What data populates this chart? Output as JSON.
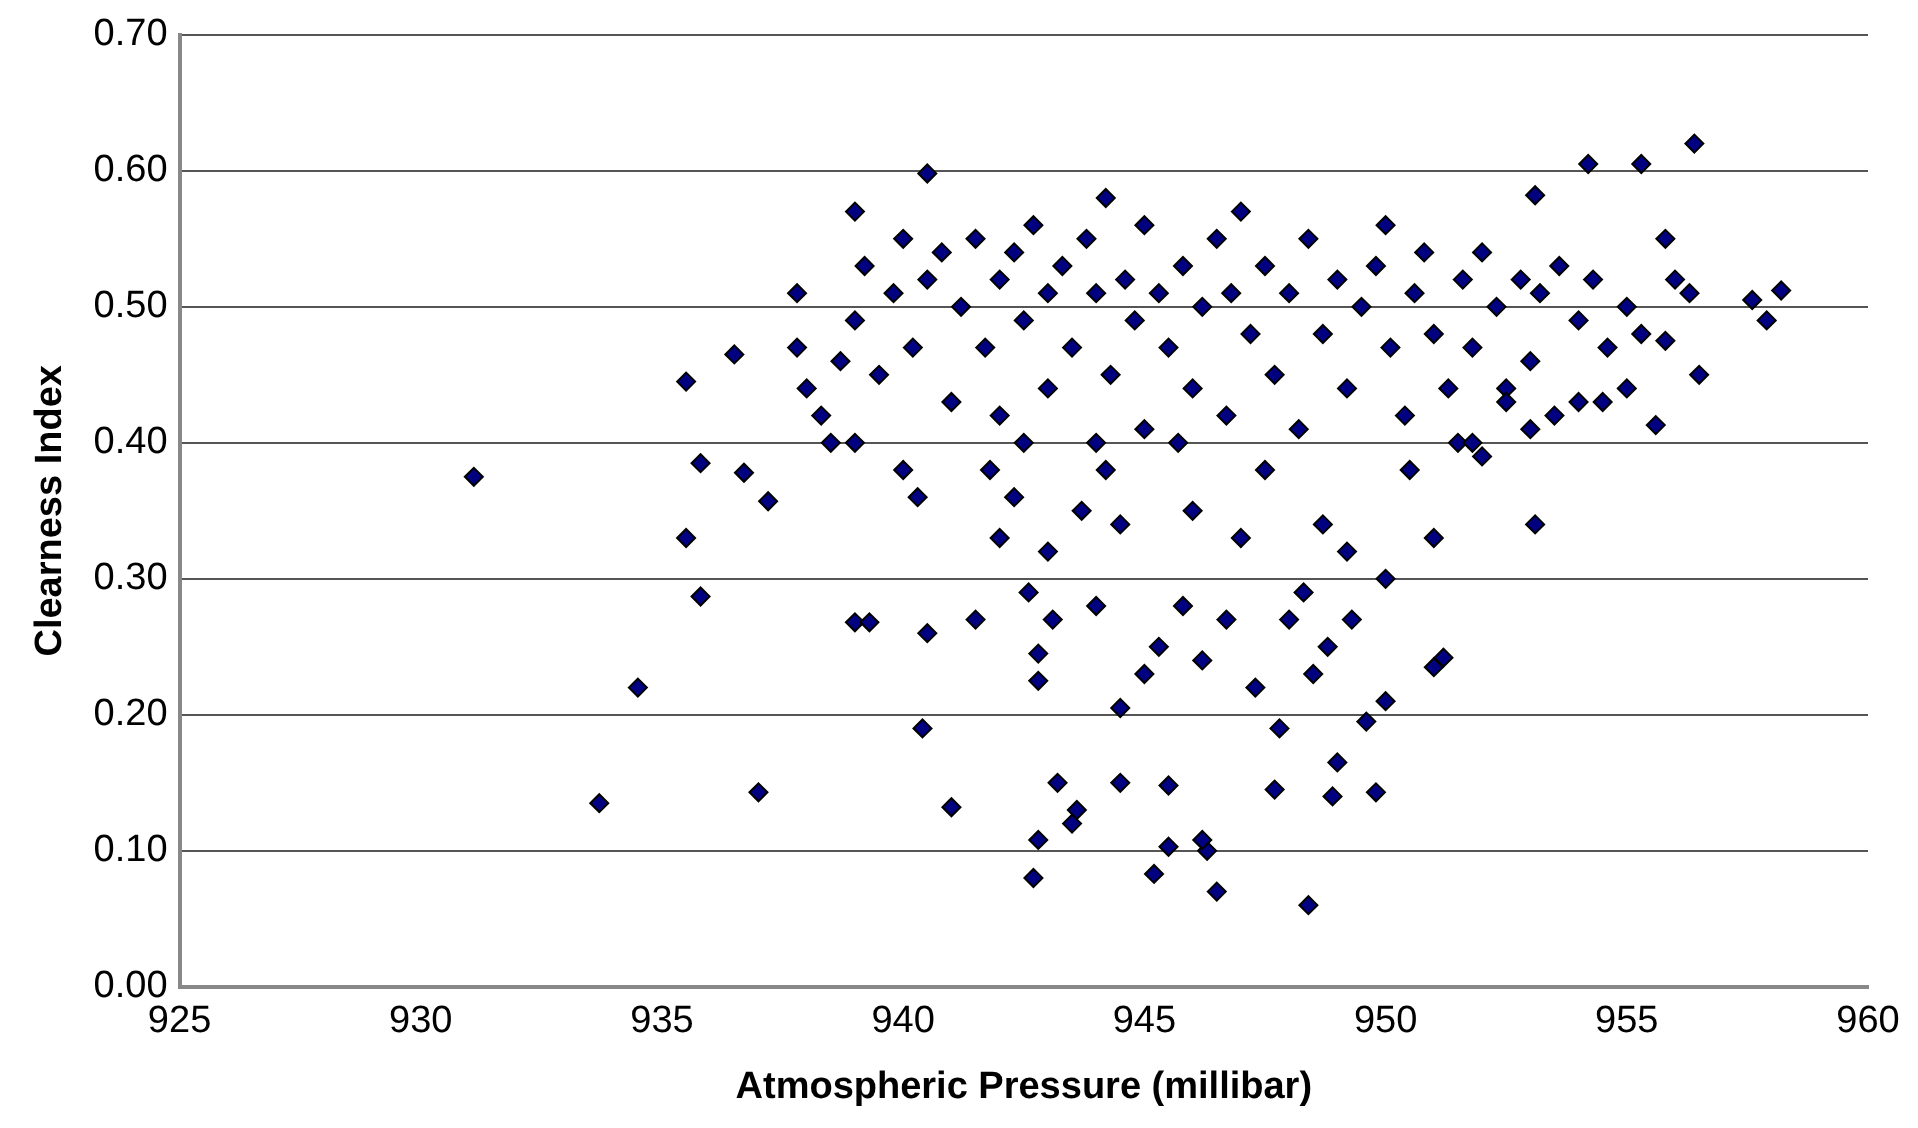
{
  "chart_data": {
    "type": "scatter",
    "xlabel": "Atmospheric Pressure (millibar)",
    "ylabel": "Clearness Index",
    "x": [
      931.1,
      933.7,
      934.5,
      935.5,
      935.5,
      935.8,
      935.8,
      936.5,
      936.7,
      937.0,
      937.2,
      940.4,
      940.5,
      941.0,
      942.7,
      942.8,
      943.2,
      943.5,
      943.6,
      944.5,
      945.2,
      945.5,
      945.5,
      946.3,
      946.5,
      946.2,
      947.7,
      948.4,
      948.9,
      949.8,
      948.5,
      949.0,
      949.6,
      950.0,
      951.0,
      951.2,
      953.1,
      955.6,
      956.5,
      957.6,
      957.9,
      958.2,
      956.4,
      955.3,
      954.2,
      953.1,
      940.5,
      939.0,
      939.3,
      941.5,
      942.0,
      942.6,
      943.0,
      943.1,
      942.8,
      942.8,
      944.0,
      944.5,
      945.0,
      945.3,
      945.8,
      946.2,
      946.7,
      947.3,
      947.8,
      948.0,
      948.3,
      948.8,
      949.3,
      950.0,
      946.0,
      947.0,
      947.5,
      948.7,
      949.2,
      950.5,
      951.0,
      941.8,
      942.3,
      944.5,
      944.2,
      945.7,
      943.7,
      952.0,
      953.0,
      954.0,
      954.5,
      955.0,
      952.5,
      951.5,
      937.8,
      937.8,
      938.0,
      938.3,
      938.5,
      938.7,
      939.0,
      939.2,
      939.0,
      939.5,
      939.8,
      940.0,
      940.2,
      940.0,
      940.5,
      940.8,
      941.0,
      941.2,
      941.5,
      941.7,
      942.0,
      942.0,
      942.3,
      942.5,
      942.7,
      943.0,
      943.0,
      943.3,
      943.5,
      943.8,
      944.0,
      944.2,
      944.3,
      944.6,
      944.8,
      945.0,
      945.0,
      945.3,
      945.5,
      945.8,
      946.0,
      946.2,
      946.5,
      946.7,
      946.8,
      947.0,
      947.2,
      947.5,
      947.7,
      948.0,
      948.2,
      948.4,
      948.7,
      949.0,
      949.2,
      949.5,
      949.8,
      950.0,
      950.1,
      950.4,
      950.6,
      950.8,
      951.0,
      951.3,
      951.6,
      951.8,
      952.0,
      952.3,
      952.5,
      952.8,
      953.0,
      953.2,
      953.6,
      954.0,
      954.3,
      954.6,
      955.0,
      955.3,
      955.8,
      956.0,
      956.3,
      955.8,
      953.5,
      951.8,
      944.0,
      942.5,
      940.3,
      939.0
    ],
    "values": [
      0.375,
      0.135,
      0.22,
      0.445,
      0.33,
      0.385,
      0.287,
      0.465,
      0.378,
      0.143,
      0.357,
      0.19,
      0.26,
      0.132,
      0.08,
      0.108,
      0.15,
      0.12,
      0.13,
      0.15,
      0.083,
      0.148,
      0.103,
      0.1,
      0.07,
      0.108,
      0.145,
      0.06,
      0.14,
      0.143,
      0.23,
      0.165,
      0.195,
      0.21,
      0.235,
      0.242,
      0.34,
      0.413,
      0.45,
      0.505,
      0.49,
      0.512,
      0.62,
      0.605,
      0.605,
      0.582,
      0.598,
      0.268,
      0.268,
      0.27,
      0.33,
      0.29,
      0.32,
      0.27,
      0.245,
      0.225,
      0.28,
      0.205,
      0.23,
      0.25,
      0.28,
      0.24,
      0.27,
      0.22,
      0.19,
      0.27,
      0.29,
      0.25,
      0.27,
      0.3,
      0.35,
      0.33,
      0.38,
      0.34,
      0.32,
      0.38,
      0.33,
      0.38,
      0.36,
      0.34,
      0.38,
      0.4,
      0.35,
      0.39,
      0.41,
      0.43,
      0.43,
      0.44,
      0.44,
      0.4,
      0.51,
      0.47,
      0.44,
      0.42,
      0.4,
      0.46,
      0.49,
      0.53,
      0.57,
      0.45,
      0.51,
      0.55,
      0.47,
      0.38,
      0.52,
      0.54,
      0.43,
      0.5,
      0.55,
      0.47,
      0.52,
      0.42,
      0.54,
      0.49,
      0.56,
      0.51,
      0.44,
      0.53,
      0.47,
      0.55,
      0.51,
      0.58,
      0.45,
      0.52,
      0.49,
      0.56,
      0.41,
      0.51,
      0.47,
      0.53,
      0.44,
      0.5,
      0.55,
      0.42,
      0.51,
      0.57,
      0.48,
      0.53,
      0.45,
      0.51,
      0.41,
      0.55,
      0.48,
      0.52,
      0.44,
      0.5,
      0.53,
      0.56,
      0.47,
      0.42,
      0.51,
      0.54,
      0.48,
      0.44,
      0.52,
      0.47,
      0.54,
      0.5,
      0.43,
      0.52,
      0.46,
      0.51,
      0.53,
      0.49,
      0.52,
      0.47,
      0.5,
      0.48,
      0.55,
      0.52,
      0.51,
      0.475,
      0.42,
      0.4,
      0.4,
      0.4,
      0.36,
      0.4
    ],
    "color": "#000080",
    "marker": "diamond",
    "grid": "y",
    "xlim": [
      925,
      960
    ],
    "xticks": [
      925,
      930,
      935,
      940,
      945,
      950,
      955,
      960
    ],
    "ylim": [
      0,
      0.7
    ],
    "yticks": [
      {
        "value": 0,
        "label": "0.00"
      },
      {
        "value": 0.1,
        "label": "0.10"
      },
      {
        "value": 0.2,
        "label": "0.20"
      },
      {
        "value": 0.3,
        "label": "0.30"
      },
      {
        "value": 0.4,
        "label": "0.40"
      },
      {
        "value": 0.5,
        "label": "0.50"
      },
      {
        "value": 0.6,
        "label": "0.60"
      },
      {
        "value": 0.7,
        "label": "0.70"
      }
    ]
  }
}
